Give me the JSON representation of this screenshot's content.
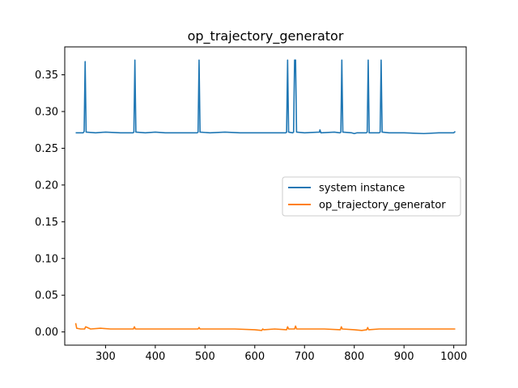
{
  "chart_data": {
    "type": "line",
    "title": "op_trajectory_generator",
    "xlabel": "",
    "ylabel": "",
    "xlim": [
      218,
      1025
    ],
    "ylim": [
      -0.018,
      0.388
    ],
    "x_ticks": [
      300,
      400,
      500,
      600,
      700,
      800,
      900,
      1000
    ],
    "y_ticks": [
      0.0,
      0.05,
      0.1,
      0.15,
      0.2,
      0.25,
      0.3,
      0.35
    ],
    "x_tick_labels": [
      "300",
      "400",
      "500",
      "600",
      "700",
      "800",
      "900",
      "1000"
    ],
    "y_tick_labels": [
      "0.00",
      "0.05",
      "0.10",
      "0.15",
      "0.20",
      "0.25",
      "0.30",
      "0.35"
    ],
    "grid": false,
    "legend_position": "center-right",
    "series": [
      {
        "name": "system instance",
        "color": "#1f77b4",
        "x": [
          240,
          255,
          257,
          259,
          261,
          280,
          300,
          330,
          355,
          357,
          359,
          361,
          380,
          400,
          420,
          450,
          484,
          486,
          488,
          490,
          510,
          540,
          570,
          600,
          630,
          662,
          664,
          666,
          668,
          676,
          678,
          680,
          682,
          684,
          700,
          730,
          731,
          733,
          760,
          771,
          773,
          775,
          777,
          795,
          800,
          805,
          824,
          826,
          828,
          830,
          850,
          852,
          854,
          856,
          870,
          900,
          940,
          970,
          1000,
          1003
        ],
        "values": [
          0.271,
          0.271,
          0.273,
          0.368,
          0.272,
          0.271,
          0.272,
          0.271,
          0.271,
          0.272,
          0.37,
          0.272,
          0.271,
          0.272,
          0.271,
          0.271,
          0.271,
          0.272,
          0.37,
          0.272,
          0.271,
          0.272,
          0.271,
          0.271,
          0.271,
          0.271,
          0.272,
          0.37,
          0.272,
          0.271,
          0.272,
          0.37,
          0.37,
          0.272,
          0.271,
          0.272,
          0.275,
          0.271,
          0.272,
          0.271,
          0.272,
          0.37,
          0.272,
          0.271,
          0.27,
          0.271,
          0.271,
          0.272,
          0.37,
          0.271,
          0.271,
          0.272,
          0.37,
          0.272,
          0.271,
          0.271,
          0.27,
          0.271,
          0.271,
          0.273
        ]
      },
      {
        "name": "op_trajectory_generator",
        "color": "#ff7f0e",
        "x": [
          240,
          242,
          250,
          258,
          260,
          270,
          290,
          310,
          330,
          356,
          358,
          360,
          380,
          420,
          460,
          486,
          488,
          490,
          520,
          560,
          600,
          614,
          616,
          618,
          640,
          664,
          666,
          668,
          680,
          682,
          684,
          700,
          740,
          772,
          774,
          776,
          800,
          815,
          825,
          827,
          829,
          850,
          880,
          920,
          960,
          1000,
          1003
        ],
        "values": [
          0.012,
          0.005,
          0.004,
          0.004,
          0.007,
          0.004,
          0.005,
          0.004,
          0.004,
          0.004,
          0.007,
          0.004,
          0.004,
          0.004,
          0.004,
          0.004,
          0.006,
          0.004,
          0.004,
          0.004,
          0.003,
          0.002,
          0.004,
          0.003,
          0.004,
          0.003,
          0.007,
          0.004,
          0.004,
          0.008,
          0.004,
          0.004,
          0.004,
          0.003,
          0.007,
          0.004,
          0.003,
          0.002,
          0.003,
          0.006,
          0.003,
          0.004,
          0.004,
          0.004,
          0.004,
          0.004,
          0.004
        ]
      }
    ]
  }
}
